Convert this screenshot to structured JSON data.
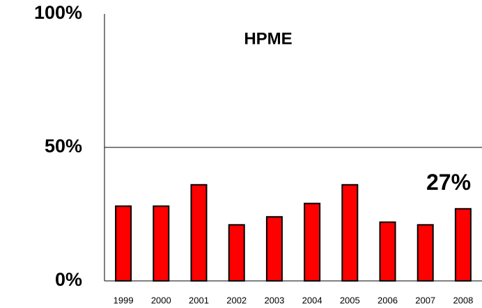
{
  "chart_data": {
    "type": "bar",
    "title": "HPME",
    "categories": [
      "1999",
      "2000",
      "2001",
      "2002",
      "2003",
      "2004",
      "2005",
      "2006",
      "2007",
      "2008"
    ],
    "values": [
      28,
      28,
      36,
      21,
      24,
      29,
      36,
      22,
      21,
      27
    ],
    "value_labels": [
      null,
      null,
      null,
      null,
      null,
      null,
      null,
      null,
      null,
      "27%"
    ],
    "color": "#ff0000",
    "ylim": [
      0,
      100
    ],
    "yticks": [
      {
        "value": 0,
        "label": "0%"
      },
      {
        "value": 50,
        "label": "50%"
      },
      {
        "value": 100,
        "label": "100%"
      }
    ],
    "grid": true
  }
}
